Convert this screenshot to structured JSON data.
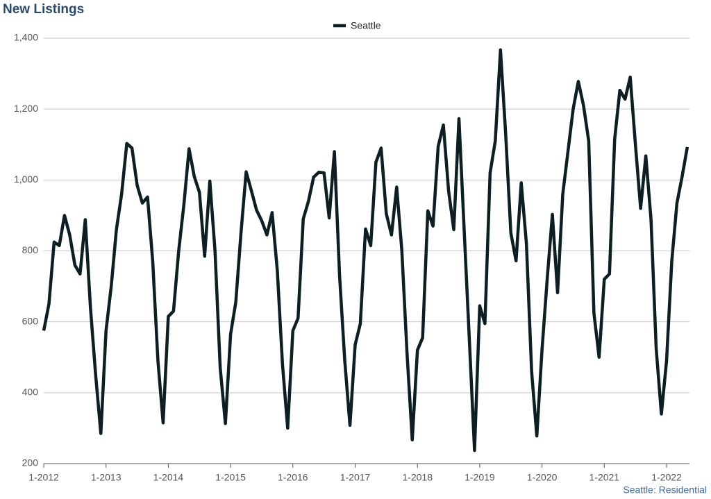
{
  "chart_data": {
    "type": "line",
    "title": "New Listings",
    "source_note": "Seattle: Residential",
    "categories": [
      "1-2012",
      null,
      null,
      null,
      null,
      null,
      null,
      null,
      null,
      null,
      null,
      null,
      "1-2013",
      null,
      null,
      null,
      null,
      null,
      null,
      null,
      null,
      null,
      null,
      null,
      "1-2014",
      null,
      null,
      null,
      null,
      null,
      null,
      null,
      null,
      null,
      null,
      null,
      "1-2015",
      null,
      null,
      null,
      null,
      null,
      null,
      null,
      null,
      null,
      null,
      null,
      "1-2016",
      null,
      null,
      null,
      null,
      null,
      null,
      null,
      null,
      null,
      null,
      null,
      "1-2017",
      null,
      null,
      null,
      null,
      null,
      null,
      null,
      null,
      null,
      null,
      null,
      "1-2018",
      null,
      null,
      null,
      null,
      null,
      null,
      null,
      null,
      null,
      null,
      null,
      "1-2019",
      null,
      null,
      null,
      null,
      null,
      null,
      null,
      null,
      null,
      null,
      null,
      "1-2020",
      null,
      null,
      null,
      null,
      null,
      null,
      null,
      null,
      null,
      null,
      null,
      "1-2021",
      null,
      null,
      null,
      null,
      null,
      null,
      null,
      null,
      null,
      null,
      null,
      "1-2022",
      null,
      null,
      null,
      null
    ],
    "series": [
      {
        "name": "Seattle",
        "color": "#0d1f22",
        "values": [
          575,
          650,
          825,
          815,
          900,
          845,
          760,
          735,
          888,
          640,
          450,
          285,
          575,
          700,
          860,
          960,
          1103,
          1090,
          985,
          935,
          952,
          770,
          490,
          315,
          615,
          630,
          800,
          930,
          1088,
          1010,
          965,
          785,
          997,
          800,
          470,
          313,
          565,
          655,
          850,
          1023,
          970,
          915,
          885,
          845,
          908,
          745,
          480,
          300,
          575,
          610,
          890,
          940,
          1008,
          1022,
          1020,
          893,
          1080,
          730,
          490,
          308,
          535,
          595,
          862,
          815,
          1050,
          1090,
          905,
          845,
          980,
          800,
          510,
          267,
          520,
          555,
          913,
          870,
          1095,
          1155,
          970,
          860,
          1173,
          860,
          550,
          237,
          645,
          595,
          1020,
          1110,
          1367,
          1130,
          850,
          772,
          992,
          820,
          460,
          278,
          520,
          720,
          903,
          682,
          960,
          1080,
          1200,
          1278,
          1210,
          1110,
          625,
          500,
          720,
          735,
          1115,
          1253,
          1228,
          1290,
          1100,
          920,
          1068,
          890,
          525,
          340,
          490,
          770,
          935,
          1010,
          1093
        ]
      }
    ],
    "ylim": [
      200,
      1400
    ],
    "yticks": [
      200,
      400,
      600,
      800,
      {
        "value": 1000,
        "label": "1,000"
      },
      {
        "value": 1200,
        "label": "1,200"
      },
      {
        "value": 1400,
        "label": "1,400"
      }
    ],
    "grid": true,
    "legend": "top"
  }
}
